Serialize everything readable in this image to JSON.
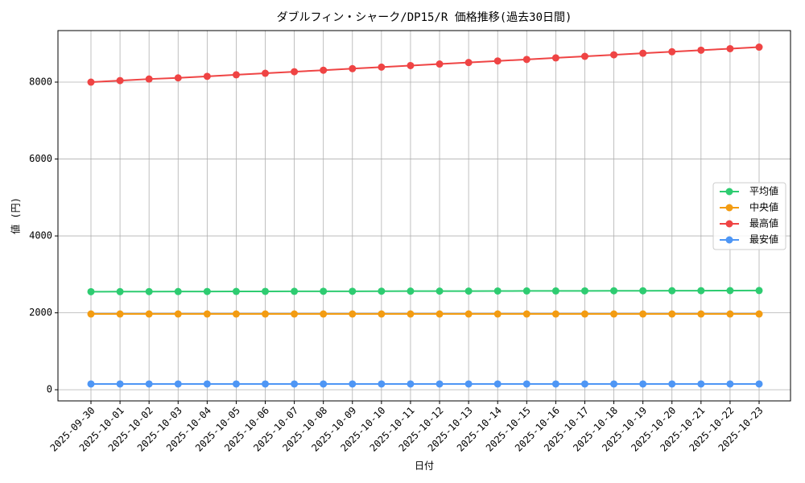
{
  "chart_data": {
    "type": "line",
    "title": "ダブルフィン・シャーク/DP15/R 価格推移(過去30日間)",
    "x_label": "日付",
    "y_label": "値 (円)",
    "categories": [
      "2025-09-30",
      "2025-10-01",
      "2025-10-02",
      "2025-10-03",
      "2025-10-04",
      "2025-10-05",
      "2025-10-06",
      "2025-10-07",
      "2025-10-08",
      "2025-10-09",
      "2025-10-10",
      "2025-10-11",
      "2025-10-12",
      "2025-10-13",
      "2025-10-14",
      "2025-10-15",
      "2025-10-16",
      "2025-10-17",
      "2025-10-18",
      "2025-10-19",
      "2025-10-20",
      "2025-10-21",
      "2025-10-22",
      "2025-10-23"
    ],
    "series": [
      {
        "name": "平均値",
        "color": "#2ecc71",
        "values": [
          2550,
          2551,
          2553,
          2554,
          2555,
          2556,
          2558,
          2559,
          2560,
          2561,
          2563,
          2564,
          2565,
          2566,
          2568,
          2569,
          2570,
          2571,
          2573,
          2574,
          2575,
          2576,
          2578,
          2580
        ]
      },
      {
        "name": "中央値",
        "color": "#f39c12",
        "values": [
          1970,
          1970,
          1970,
          1970,
          1970,
          1970,
          1970,
          1970,
          1970,
          1970,
          1970,
          1970,
          1970,
          1970,
          1970,
          1970,
          1970,
          1970,
          1970,
          1970,
          1970,
          1970,
          1970,
          1970
        ]
      },
      {
        "name": "最高値",
        "color": "#ef4444",
        "values": [
          8000,
          8040,
          8080,
          8110,
          8150,
          8190,
          8230,
          8270,
          8310,
          8350,
          8390,
          8430,
          8470,
          8510,
          8550,
          8590,
          8630,
          8670,
          8710,
          8750,
          8790,
          8830,
          8870,
          8910
        ]
      },
      {
        "name": "最安値",
        "color": "#4e96f5",
        "values": [
          150,
          150,
          150,
          150,
          150,
          150,
          150,
          150,
          150,
          150,
          150,
          150,
          150,
          150,
          150,
          150,
          150,
          150,
          150,
          150,
          150,
          150,
          150,
          150
        ]
      }
    ],
    "ylim": [
      -290,
      9340
    ],
    "yticks": [
      0,
      2000,
      4000,
      6000,
      8000
    ],
    "grid": true,
    "legend": "right"
  }
}
